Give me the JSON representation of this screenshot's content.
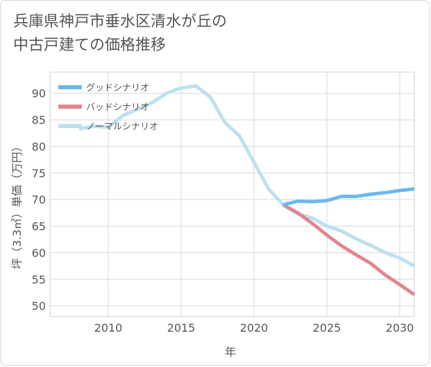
{
  "title_line1": "兵庫県神戸市垂水区清水が丘の",
  "title_line2": "中古戸建ての価格推移",
  "chart_data": {
    "type": "line",
    "title": "兵庫県神戸市垂水区清水が丘の中古戸建ての価格推移",
    "xlabel": "年",
    "ylabel": "坪（3.3㎡）単価（万円）",
    "xlim": [
      2006,
      2031
    ],
    "ylim": [
      48,
      94
    ],
    "xticks": [
      2010,
      2015,
      2020,
      2025,
      2030
    ],
    "yticks": [
      50,
      55,
      60,
      65,
      70,
      75,
      80,
      85,
      90
    ],
    "grid": true,
    "legend_position": "top-left",
    "series": [
      {
        "name": "グッドシナリオ",
        "color": "#6cb8ee",
        "x": [
          2022,
          2023,
          2024,
          2025,
          2026,
          2027,
          2028,
          2029,
          2030,
          2031
        ],
        "y": [
          69.0,
          69.7,
          69.6,
          69.8,
          70.6,
          70.6,
          71.0,
          71.3,
          71.7,
          72.0
        ]
      },
      {
        "name": "バッドシナリオ",
        "color": "#e0878f",
        "x": [
          2022,
          2023,
          2024,
          2025,
          2026,
          2027,
          2028,
          2029,
          2030,
          2031
        ],
        "y": [
          69.0,
          67.5,
          65.5,
          63.3,
          61.3,
          59.6,
          58.0,
          55.8,
          54.0,
          52.1
        ]
      },
      {
        "name": "ノーマルシナリオ",
        "color": "#bde0ee",
        "x": [
          2008,
          2009,
          2010,
          2011,
          2012,
          2013,
          2014,
          2015,
          2016,
          2017,
          2018,
          2019,
          2020,
          2021,
          2022,
          2023,
          2024,
          2025,
          2026,
          2027,
          2028,
          2029,
          2030,
          2031
        ],
        "y": [
          83.3,
          83.8,
          83.6,
          85.8,
          87.0,
          88.2,
          90.0,
          91.0,
          91.4,
          89.3,
          84.5,
          82.0,
          77.0,
          72.0,
          69.0,
          67.3,
          66.5,
          65.0,
          64.1,
          62.6,
          61.4,
          60.0,
          59.0,
          57.5
        ]
      }
    ]
  }
}
